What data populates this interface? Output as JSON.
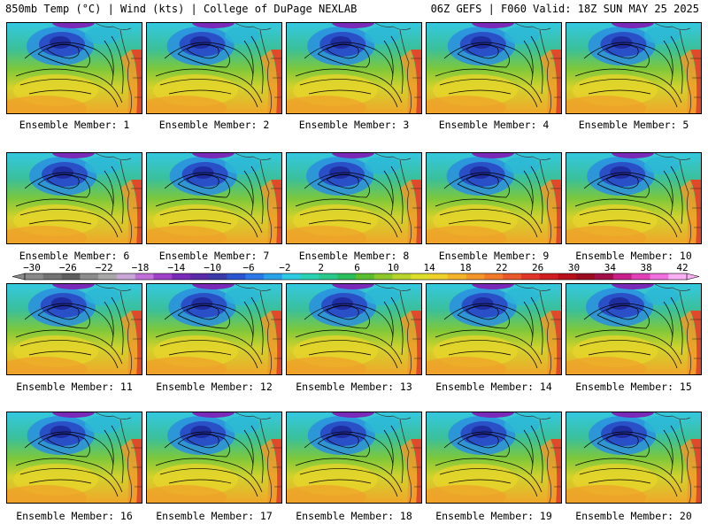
{
  "header": {
    "left": "850mb Temp (°C) | Wind (kts) | College of DuPage NEXLAB",
    "right": "06Z GEFS | F060 Valid: 18Z SUN MAY 25 2025"
  },
  "panel_caption_prefix": "Ensemble Member: ",
  "panels": [
    {
      "member": "1"
    },
    {
      "member": "2"
    },
    {
      "member": "3"
    },
    {
      "member": "4"
    },
    {
      "member": "5"
    },
    {
      "member": "6"
    },
    {
      "member": "7"
    },
    {
      "member": "8"
    },
    {
      "member": "9"
    },
    {
      "member": "10"
    },
    {
      "member": "11"
    },
    {
      "member": "12"
    },
    {
      "member": "13"
    },
    {
      "member": "14"
    },
    {
      "member": "15"
    },
    {
      "member": "16"
    },
    {
      "member": "17"
    },
    {
      "member": "18"
    },
    {
      "member": "19"
    },
    {
      "member": "20"
    }
  ],
  "colorbar": {
    "tick_labels": [
      "−30",
      "−26",
      "−22",
      "−18",
      "−14",
      "−10",
      "−6",
      "−2",
      "2",
      "6",
      "10",
      "14",
      "18",
      "22",
      "26",
      "30",
      "34",
      "38",
      "42"
    ],
    "colors": [
      "#8a8a8a",
      "#727272",
      "#5e5e5e",
      "#8c8c8c",
      "#a8a8a8",
      "#c9a8d8",
      "#c070d8",
      "#a040c8",
      "#7a2ab8",
      "#5a2aa8",
      "#3a3aa8",
      "#2a55d0",
      "#2c78e8",
      "#2aa2ea",
      "#2ccbe2",
      "#28d2b2",
      "#2ac88a",
      "#2abe5a",
      "#5abe2e",
      "#8cc82c",
      "#b8d42a",
      "#dede2a",
      "#f0d02a",
      "#f4b42a",
      "#f4962a",
      "#f07a2a",
      "#e8582a",
      "#e0362a",
      "#d01e20",
      "#b81018",
      "#9a0c20",
      "#a01048",
      "#c8208a",
      "#e040b8",
      "#f070e0",
      "#fab0f4"
    ]
  }
}
